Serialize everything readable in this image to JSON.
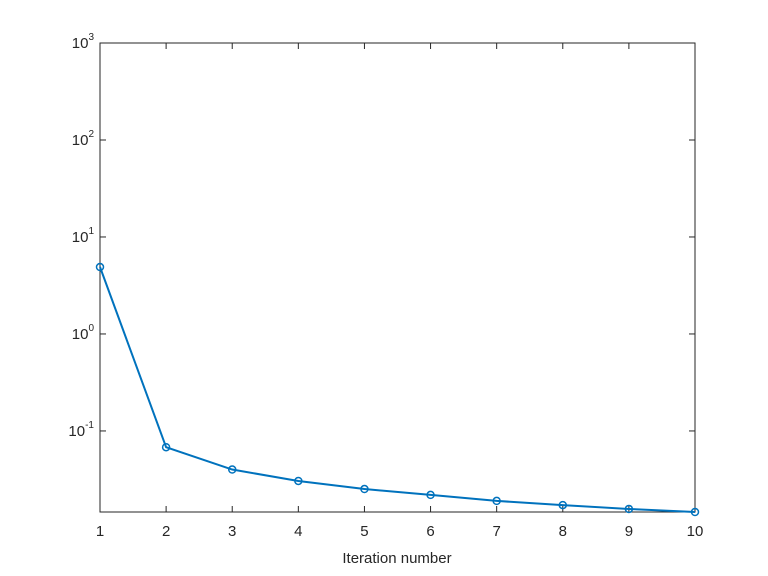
{
  "chart_data": {
    "type": "line",
    "xlabel": "Iteration number",
    "x": [
      1,
      2,
      3,
      4,
      5,
      6,
      7,
      8,
      9,
      10
    ],
    "series": [
      {
        "color": "#0072bd",
        "values": [
          4.9,
          0.068,
          0.04,
          0.0305,
          0.0252,
          0.0219,
          0.019,
          0.0172,
          0.0157,
          0.0146
        ]
      }
    ],
    "xlim": [
      1,
      10
    ],
    "xticks": [
      1,
      2,
      3,
      4,
      5,
      6,
      7,
      8,
      9,
      10
    ],
    "ylim": [
      0.0146,
      1000
    ],
    "yscale": "log",
    "yticks": [
      {
        "value": 0.1,
        "label": "10",
        "exponent": "-1"
      },
      {
        "value": 1,
        "label": "10",
        "exponent": "0"
      },
      {
        "value": 10,
        "label": "10",
        "exponent": "1"
      },
      {
        "value": 100,
        "label": "10",
        "exponent": "2"
      },
      {
        "value": 1000,
        "label": "10",
        "exponent": "3"
      }
    ],
    "marker": "circle",
    "grid": false
  }
}
